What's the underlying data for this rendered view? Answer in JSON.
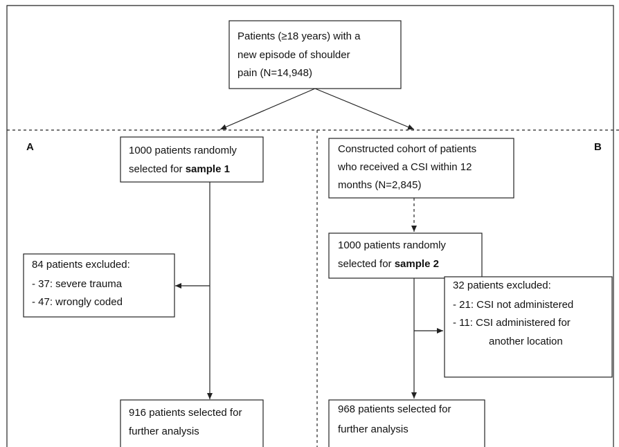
{
  "nodes": [
    {
      "lines": [
        "Patients  (≥18 years) with a",
        "new episode of shoulder",
        "pain (N=14,948)"
      ]
    },
    {
      "lines": [
        "1000 patients randomly",
        "selected for"
      ],
      "emphasis": "sample 1"
    },
    {
      "lines": [
        "84 patients excluded:",
        "- 37: severe trauma",
        "- 47: wrongly coded"
      ]
    },
    {
      "lines": [
        "916 patients selected for",
        "further analysis"
      ]
    },
    {
      "lines": [
        "Constructed cohort of patients",
        "who received a CSI within 12",
        "months (N=2,845)"
      ]
    },
    {
      "lines": [
        "1000 patients randomly",
        "selected for"
      ],
      "emphasis": "sample 2"
    },
    {
      "lines": [
        "32 patients excluded:",
        "- 21: CSI not administered",
        "- 11: CSI administered for",
        "another location"
      ]
    },
    {
      "lines": [
        "968 patients selected for",
        "further analysis"
      ]
    }
  ],
  "panels": [
    "A",
    "B"
  ]
}
